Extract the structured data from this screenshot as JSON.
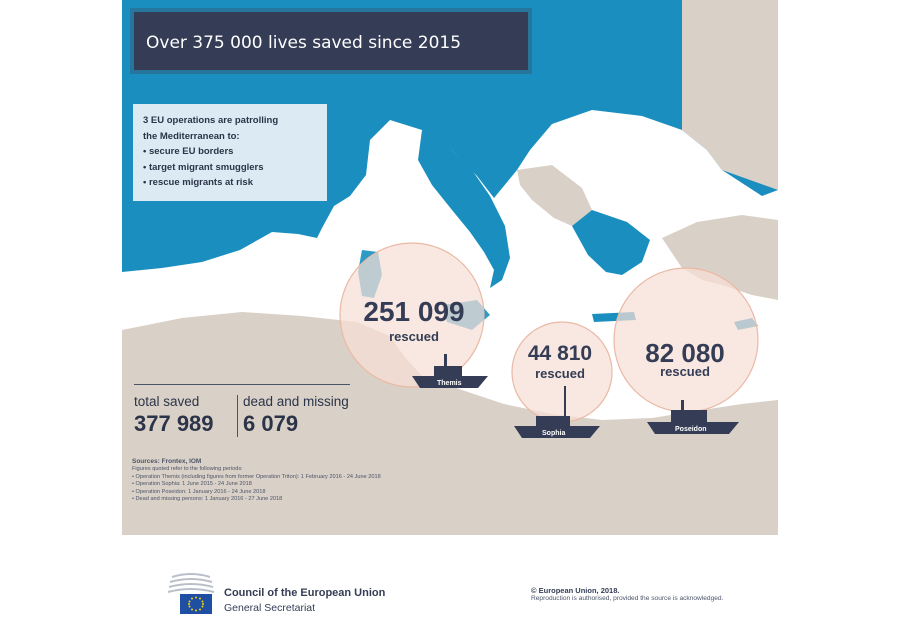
{
  "title": "Over 375 000 lives saved since 2015",
  "operations_box": {
    "intro": [
      "3 EU operations are patrolling",
      "the Mediterranean to:"
    ],
    "bullets": [
      "secure EU borders",
      "target migrant smugglers",
      "rescue migrants at risk"
    ]
  },
  "totals": {
    "saved_label": "total saved",
    "saved_value": "377 989",
    "dead_label": "dead and missing",
    "dead_value": "6 079"
  },
  "operations": [
    {
      "name": "Themis",
      "value": "251 099",
      "label": "rescued"
    },
    {
      "name": "Sophia",
      "value": "44 810",
      "label": "rescued"
    },
    {
      "name": "Poseidon",
      "value": "82 080",
      "label": "rescued"
    }
  ],
  "sources": {
    "title": "Sources: Frontex, IOM",
    "intro": "Figures quoted refer to the following periods:",
    "lines": [
      "• Operation Themis (including figures from former Operation Triton): 1 February 2016 - 24 June 2018",
      "• Operation Sophia: 1 June 2015 - 24 June 2018",
      "• Operation Poseidon: 1 January 2016 - 24 June 2018",
      "• Dead and missing persons: 1 January 2016 - 27 June 2018"
    ]
  },
  "footer": {
    "org_name": "Council of the European Union",
    "org_sub": "General Secretariat",
    "copyright": "© European Union, 2018.",
    "reproduction": "Reproduction is authorised, provided the source is acknowledged."
  },
  "colors": {
    "eu_land": "#1a8fbf",
    "non_eu_land": "#d9d0c7",
    "sea": "#ffffff",
    "dark_navy": "#343d55",
    "circle_fill": "#f6dfd5",
    "circle_stroke": "#eab9a5"
  },
  "icons": {
    "ship": "ship-icon",
    "eu_flag": "eu-flag-icon",
    "council_logo": "council-building-icon"
  }
}
